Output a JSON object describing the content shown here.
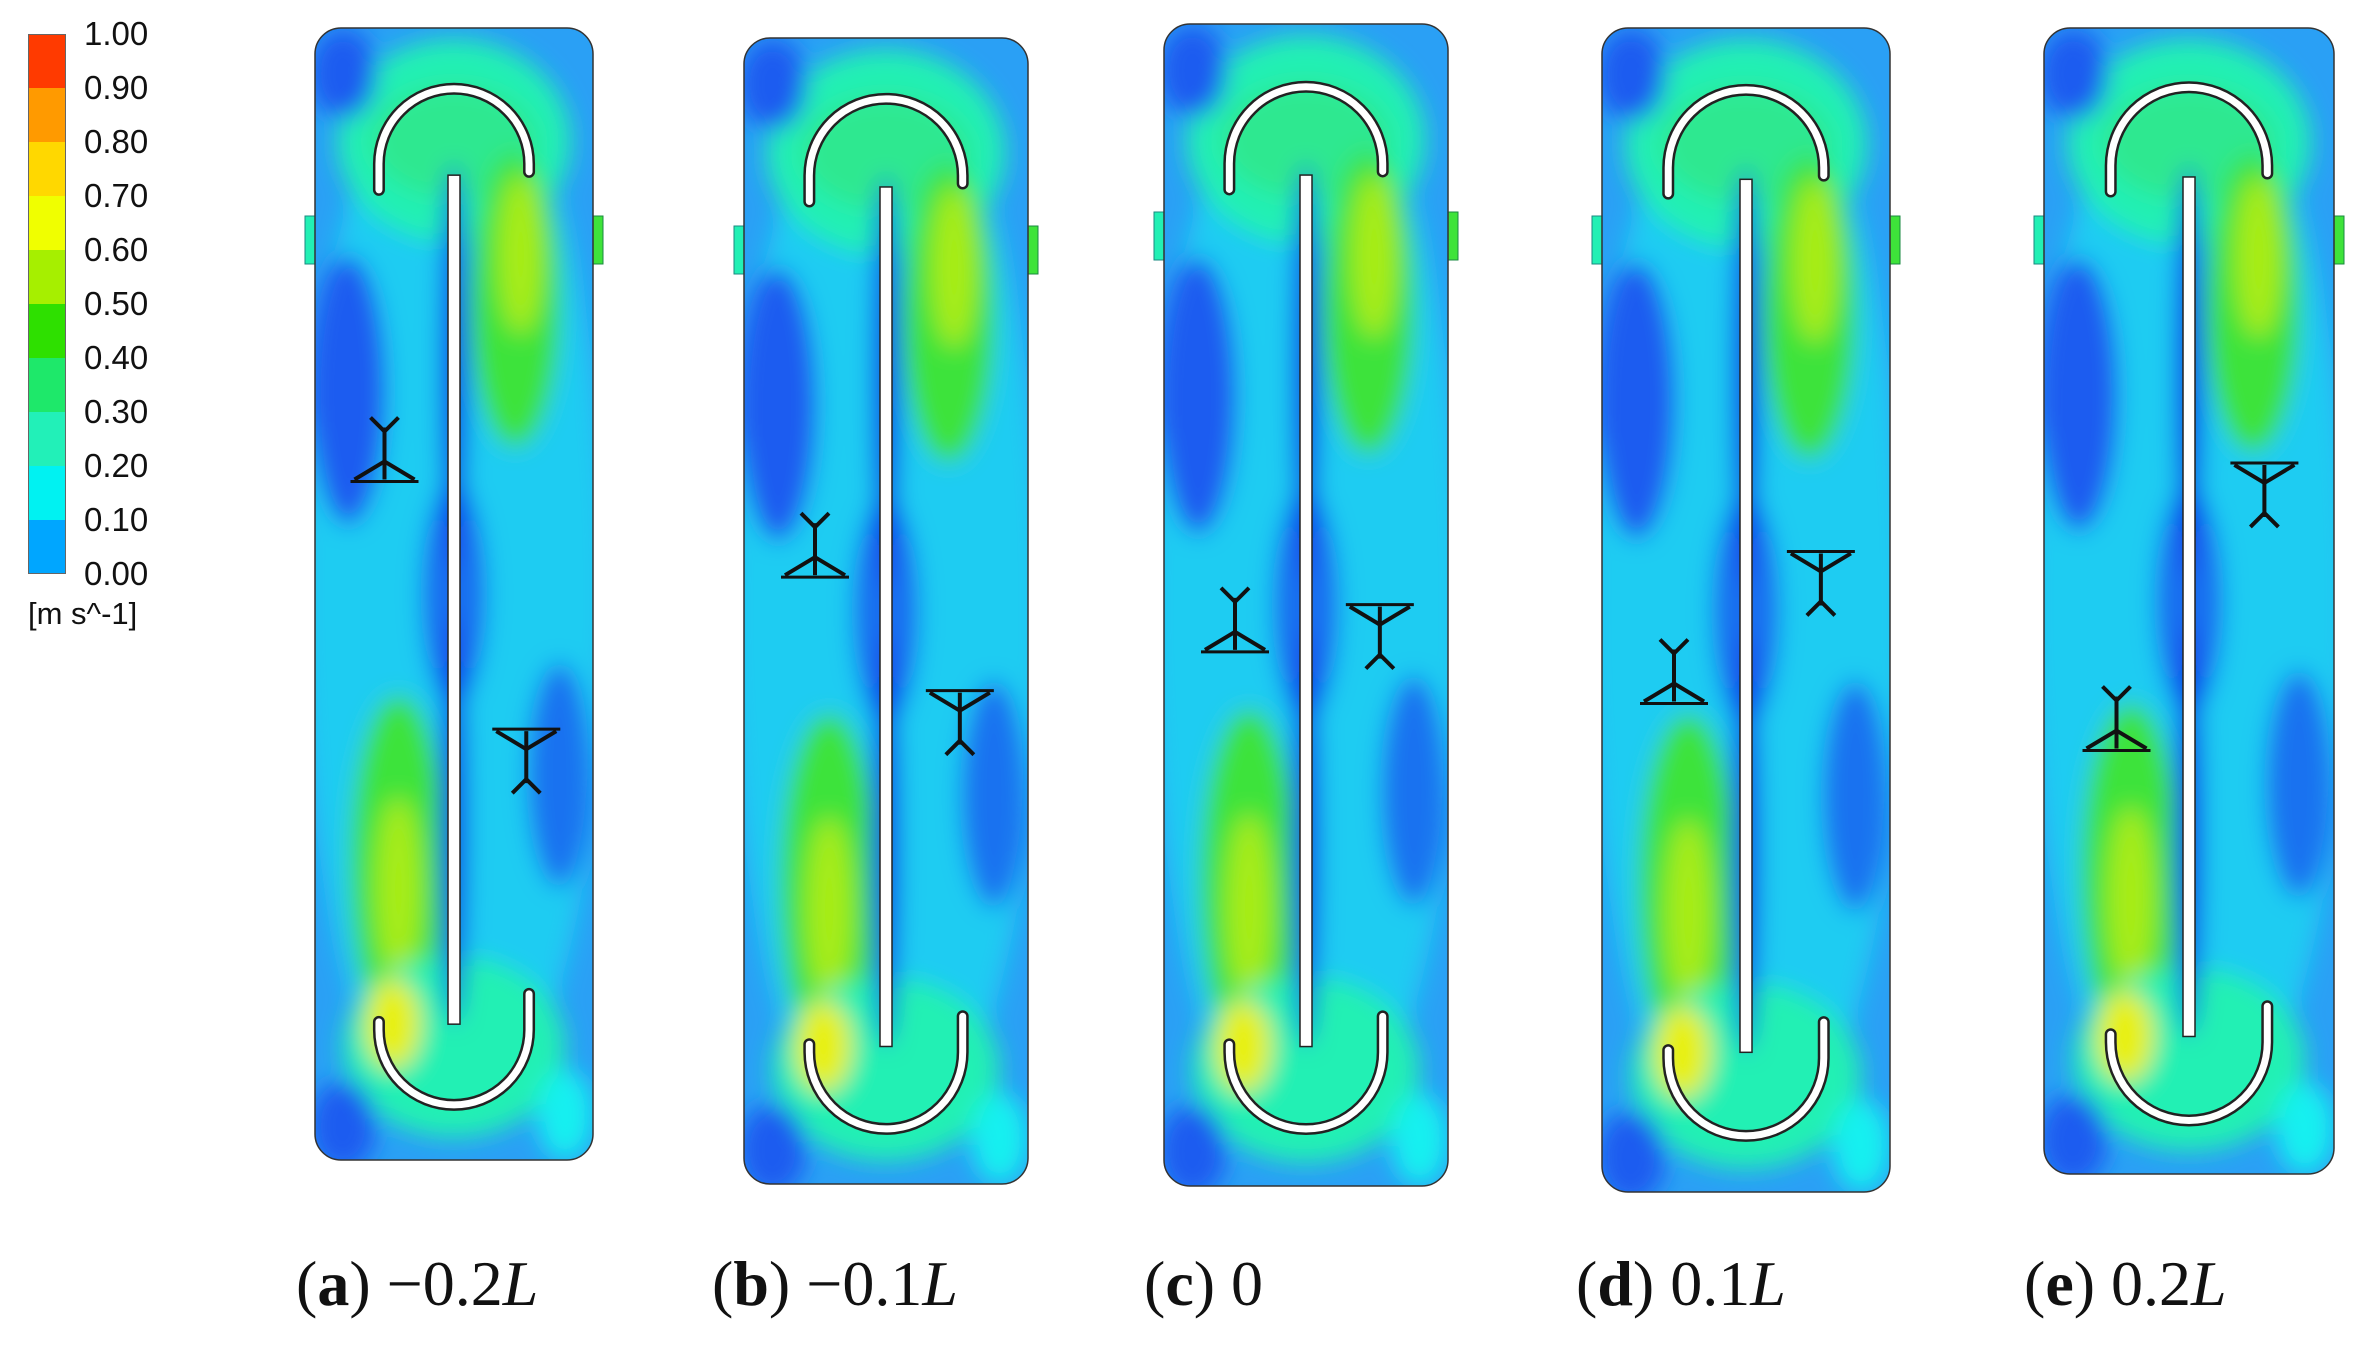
{
  "colorbar": {
    "ticks": [
      "1.00",
      "0.90",
      "0.80",
      "0.70",
      "0.60",
      "0.50",
      "0.40",
      "0.30",
      "0.20",
      "0.10",
      "0.00"
    ],
    "unit": "[m s^-1]",
    "colors": [
      "#ff3a00",
      "#ff9a00",
      "#ffd800",
      "#f0ff00",
      "#a6ef00",
      "#2ee000",
      "#1ee86a",
      "#22f0b8",
      "#00f2f2",
      "#00a6ff",
      "#0040f0"
    ]
  },
  "panels": [
    {
      "letter": "a",
      "value": "−0.2",
      "unit": "L",
      "impellers": [
        {
          "y": 0.39,
          "side": "left",
          "orient": "down"
        },
        {
          "y": 0.63,
          "side": "right",
          "orient": "up"
        }
      ]
    },
    {
      "letter": "b",
      "value": "−0.1",
      "unit": "L",
      "impellers": [
        {
          "y": 0.46,
          "side": "left",
          "orient": "down"
        },
        {
          "y": 0.58,
          "side": "right",
          "orient": "up"
        }
      ]
    },
    {
      "letter": "c",
      "value": "0",
      "unit": "",
      "impellers": [
        {
          "y": 0.53,
          "side": "left",
          "orient": "down"
        },
        {
          "y": 0.51,
          "side": "right",
          "orient": "up"
        }
      ]
    },
    {
      "letter": "d",
      "value": "0.1",
      "unit": "L",
      "impellers": [
        {
          "y": 0.57,
          "side": "left",
          "orient": "down"
        },
        {
          "y": 0.46,
          "side": "right",
          "orient": "up"
        }
      ]
    },
    {
      "letter": "e",
      "value": "0.2",
      "unit": "L",
      "impellers": [
        {
          "y": 0.62,
          "side": "left",
          "orient": "down"
        },
        {
          "y": 0.39,
          "side": "right",
          "orient": "up"
        }
      ]
    }
  ]
}
